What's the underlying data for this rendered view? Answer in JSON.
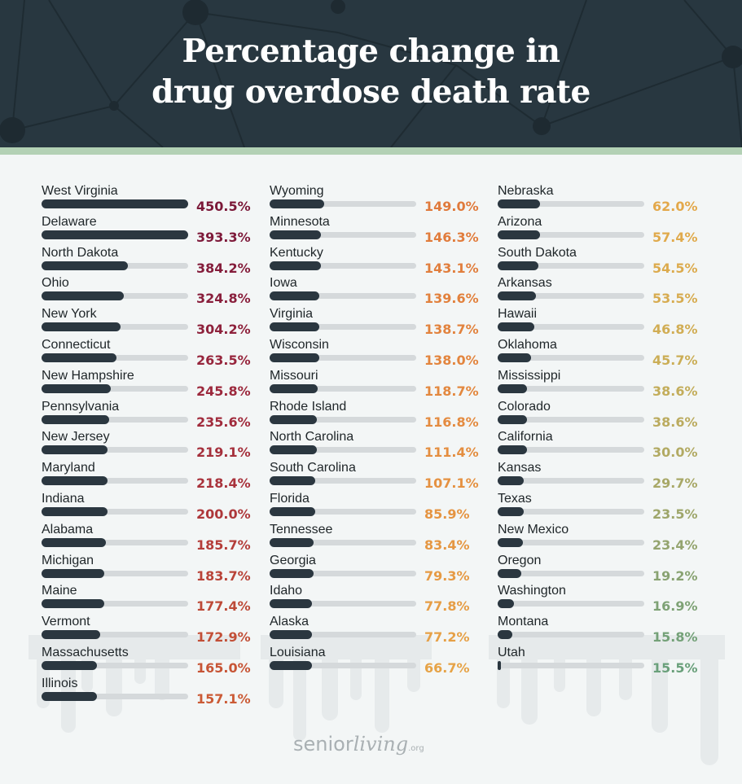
{
  "header": {
    "title_line1": "Percentage change in",
    "title_line2": "drug overdose death rate"
  },
  "colors": {
    "header_bg": "#283740",
    "band": "#b3d1b5",
    "bar_fill": "#2b3740",
    "bar_track": "#d5d9db"
  },
  "footer": {
    "logo_sans": "senior",
    "logo_script": "living",
    "logo_suffix": ".org"
  },
  "chart_data": {
    "type": "bar",
    "title": "Percentage change in drug overdose death rate",
    "xlabel": "",
    "ylabel": "",
    "unit": "%",
    "columns": [
      [
        {
          "state": "West Virginia",
          "label": "450.5%",
          "value": 450.5,
          "fill": 1.0,
          "color": "#7b1838"
        },
        {
          "state": "Delaware",
          "label": "393.3%",
          "value": 393.3,
          "fill": 1.0,
          "color": "#7e1a3a"
        },
        {
          "state": "North Dakota",
          "label": "384.2%",
          "value": 384.2,
          "fill": 0.59,
          "color": "#841d3b"
        },
        {
          "state": "Ohio",
          "label": "324.8%",
          "value": 324.8,
          "fill": 0.56,
          "color": "#891f3c"
        },
        {
          "state": "New York",
          "label": "304.2%",
          "value": 304.2,
          "fill": 0.54,
          "color": "#8e223c"
        },
        {
          "state": "Connecticut",
          "label": "263.5%",
          "value": 263.5,
          "fill": 0.51,
          "color": "#97263d"
        },
        {
          "state": "New Hampshire",
          "label": "245.8%",
          "value": 245.8,
          "fill": 0.47,
          "color": "#9c293d"
        },
        {
          "state": "Pennsylvania",
          "label": "235.6%",
          "value": 235.6,
          "fill": 0.46,
          "color": "#a12c3d"
        },
        {
          "state": "New Jersey",
          "label": "219.1%",
          "value": 219.1,
          "fill": 0.45,
          "color": "#a5303c"
        },
        {
          "state": "Maryland",
          "label": "218.4%",
          "value": 218.4,
          "fill": 0.45,
          "color": "#a9333c"
        },
        {
          "state": "Indiana",
          "label": "200.0%",
          "value": 200.0,
          "fill": 0.45,
          "color": "#ae383b"
        },
        {
          "state": "Alabama",
          "label": "185.7%",
          "value": 185.7,
          "fill": 0.44,
          "color": "#b43e3a"
        },
        {
          "state": "Michigan",
          "label": "183.7%",
          "value": 183.7,
          "fill": 0.43,
          "color": "#b94439"
        },
        {
          "state": "Maine",
          "label": "177.4%",
          "value": 177.4,
          "fill": 0.43,
          "color": "#bd4a38"
        },
        {
          "state": "Vermont",
          "label": "172.9%",
          "value": 172.9,
          "fill": 0.4,
          "color": "#c24f37"
        },
        {
          "state": "Massachusetts",
          "label": "165.0%",
          "value": 165.0,
          "fill": 0.38,
          "color": "#c75536"
        },
        {
          "state": "Illinois",
          "label": "157.1%",
          "value": 157.1,
          "fill": 0.38,
          "color": "#cb5b36"
        }
      ],
      [
        {
          "state": "Wyoming",
          "label": "149.0%",
          "value": 149.0,
          "fill": 0.37,
          "color": "#e07a3c"
        },
        {
          "state": "Minnesota",
          "label": "146.3%",
          "value": 146.3,
          "fill": 0.35,
          "color": "#e17c3c"
        },
        {
          "state": "Kentucky",
          "label": "143.1%",
          "value": 143.1,
          "fill": 0.35,
          "color": "#e17e3d"
        },
        {
          "state": "Iowa",
          "label": "139.6%",
          "value": 139.6,
          "fill": 0.34,
          "color": "#e2813d"
        },
        {
          "state": "Virginia",
          "label": "138.7%",
          "value": 138.7,
          "fill": 0.34,
          "color": "#e2833e"
        },
        {
          "state": "Wisconsin",
          "label": "138.0%",
          "value": 138.0,
          "fill": 0.34,
          "color": "#e3853e"
        },
        {
          "state": "Missouri",
          "label": "118.7%",
          "value": 118.7,
          "fill": 0.33,
          "color": "#e3883f"
        },
        {
          "state": "Rhode Island",
          "label": "116.8%",
          "value": 116.8,
          "fill": 0.32,
          "color": "#e48b40"
        },
        {
          "state": "North Carolina",
          "label": "111.4%",
          "value": 111.4,
          "fill": 0.32,
          "color": "#e48e40"
        },
        {
          "state": "South Carolina",
          "label": "107.1%",
          "value": 107.1,
          "fill": 0.31,
          "color": "#e59141"
        },
        {
          "state": "Florida",
          "label": "85.9%",
          "value": 85.9,
          "fill": 0.31,
          "color": "#e59442"
        },
        {
          "state": "Tennessee",
          "label": "83.4%",
          "value": 83.4,
          "fill": 0.3,
          "color": "#e59743"
        },
        {
          "state": "Georgia",
          "label": "79.3%",
          "value": 79.3,
          "fill": 0.3,
          "color": "#e69a44"
        },
        {
          "state": "Idaho",
          "label": "77.8%",
          "value": 77.8,
          "fill": 0.29,
          "color": "#e69d45"
        },
        {
          "state": "Alaska",
          "label": "77.2%",
          "value": 77.2,
          "fill": 0.29,
          "color": "#e6a046"
        },
        {
          "state": "Louisiana",
          "label": "66.7%",
          "value": 66.7,
          "fill": 0.29,
          "color": "#e6a347"
        }
      ],
      [
        {
          "state": "Nebraska",
          "label": "62.0%",
          "value": 62.0,
          "fill": 0.29,
          "color": "#e3a84a"
        },
        {
          "state": "Arizona",
          "label": "57.4%",
          "value": 57.4,
          "fill": 0.29,
          "color": "#e0aa4c"
        },
        {
          "state": "South Dakota",
          "label": "54.5%",
          "value": 54.5,
          "fill": 0.28,
          "color": "#dcab4e"
        },
        {
          "state": "Arkansas",
          "label": "53.5%",
          "value": 53.5,
          "fill": 0.26,
          "color": "#d7ac51"
        },
        {
          "state": "Hawaii",
          "label": "46.8%",
          "value": 46.8,
          "fill": 0.25,
          "color": "#d1ad54"
        },
        {
          "state": "Oklahoma",
          "label": "45.7%",
          "value": 45.7,
          "fill": 0.23,
          "color": "#cbae57"
        },
        {
          "state": "Mississippi",
          "label": "38.6%",
          "value": 38.6,
          "fill": 0.2,
          "color": "#c3ad5b"
        },
        {
          "state": "Colorado",
          "label": "38.6%",
          "value": 38.6,
          "fill": 0.2,
          "color": "#bbab5f"
        },
        {
          "state": "California",
          "label": "30.0%",
          "value": 30.0,
          "fill": 0.2,
          "color": "#b2aa63"
        },
        {
          "state": "Kansas",
          "label": "29.7%",
          "value": 29.7,
          "fill": 0.18,
          "color": "#a8a867"
        },
        {
          "state": "Texas",
          "label": "23.5%",
          "value": 23.5,
          "fill": 0.18,
          "color": "#9ea66b"
        },
        {
          "state": "New Mexico",
          "label": "23.4%",
          "value": 23.4,
          "fill": 0.17,
          "color": "#94a46e"
        },
        {
          "state": "Oregon",
          "label": "19.2%",
          "value": 19.2,
          "fill": 0.16,
          "color": "#89a372"
        },
        {
          "state": "Washington",
          "label": "16.9%",
          "value": 16.9,
          "fill": 0.11,
          "color": "#7ea275"
        },
        {
          "state": "Montana",
          "label": "15.8%",
          "value": 15.8,
          "fill": 0.1,
          "color": "#74a178"
        },
        {
          "state": "Utah",
          "label": "15.5%",
          "value": 15.5,
          "fill": 0.02,
          "color": "#6aa07b"
        }
      ]
    ]
  }
}
